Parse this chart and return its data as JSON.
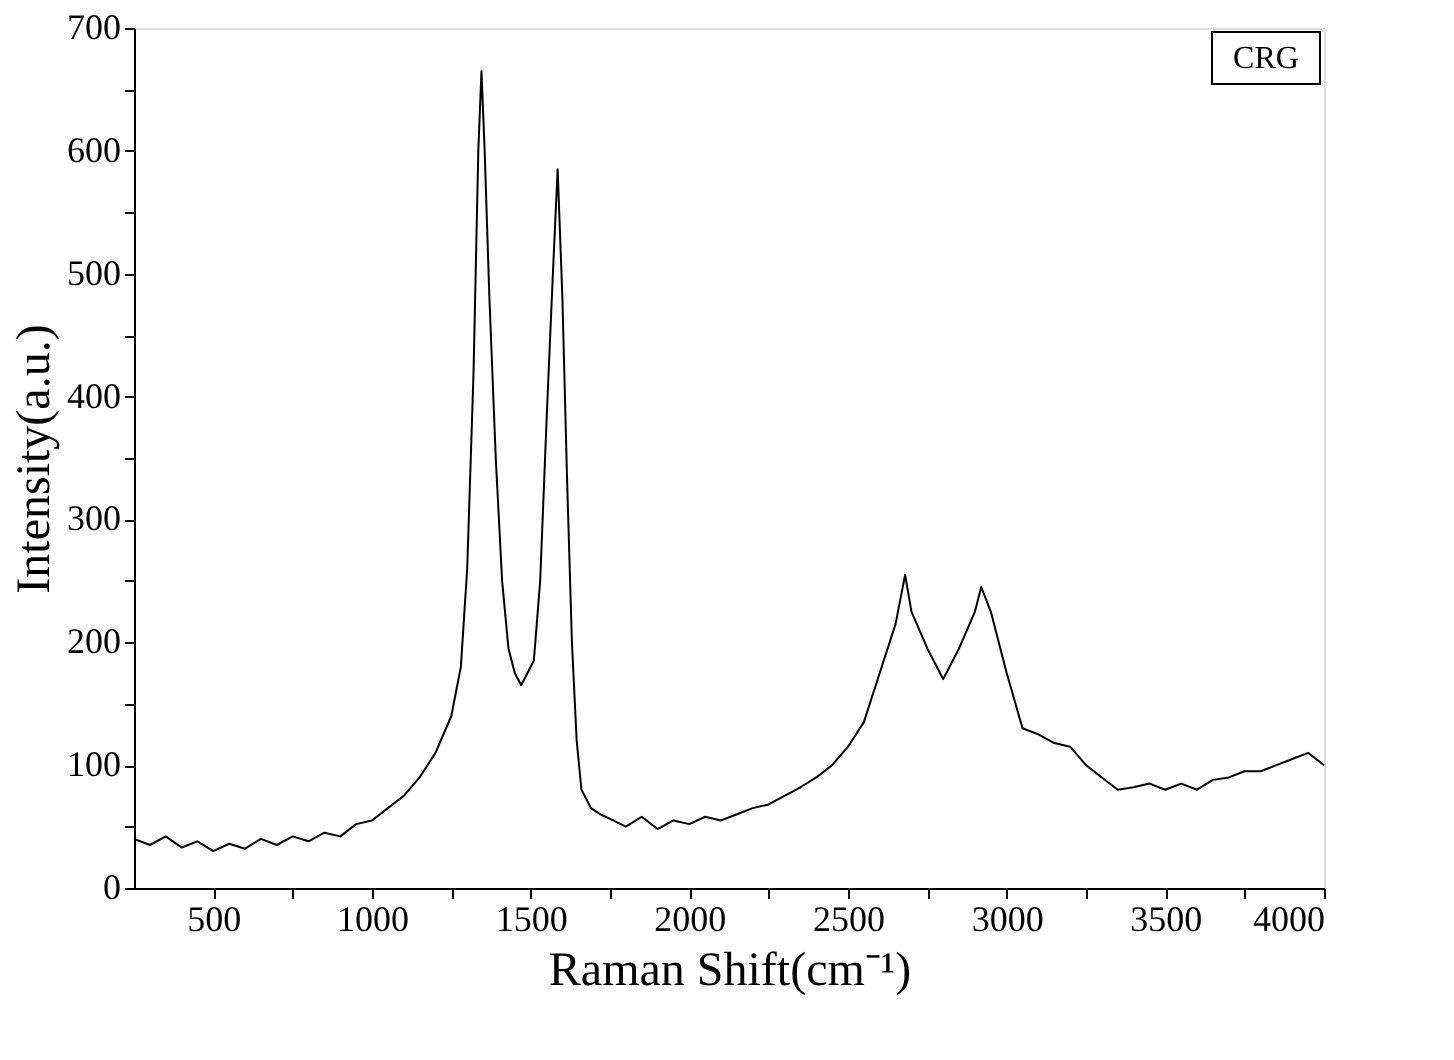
{
  "chart_data": {
    "type": "line",
    "xlabel": "Raman Shift(cm⁻¹)",
    "ylabel": "Intensity(a.u.)",
    "annotations": [
      "CRG"
    ],
    "xlim": [
      250,
      4000
    ],
    "ylim": [
      0,
      700
    ],
    "xticks": [
      500,
      {
        "value": 750,
        "label": null
      },
      1000,
      {
        "value": 1250,
        "label": null
      },
      1500,
      {
        "value": 1750,
        "label": null
      },
      2000,
      {
        "value": 2250,
        "label": null
      },
      2500,
      {
        "value": 2750,
        "label": null
      },
      3000,
      {
        "value": 3250,
        "label": null
      },
      3500,
      {
        "value": 3750,
        "label": null
      },
      4000
    ],
    "yticks": [
      0,
      {
        "value": 50,
        "label": null
      },
      100,
      {
        "value": 150,
        "label": null
      },
      200,
      {
        "value": 250,
        "label": null
      },
      300,
      {
        "value": 350,
        "label": null
      },
      400,
      {
        "value": 450,
        "label": null
      },
      500,
      {
        "value": 550,
        "label": null
      },
      600,
      {
        "value": 650,
        "label": null
      },
      700
    ],
    "grid": false,
    "marker": "none",
    "line_style": "solid",
    "series": [
      {
        "color": "#000000",
        "x": [
          250,
          300,
          350,
          400,
          450,
          500,
          550,
          600,
          650,
          700,
          750,
          800,
          850,
          900,
          950,
          1000,
          1050,
          1100,
          1150,
          1200,
          1250,
          1280,
          1300,
          1320,
          1335,
          1345,
          1355,
          1370,
          1390,
          1410,
          1430,
          1450,
          1470,
          1490,
          1510,
          1530,
          1550,
          1570,
          1585,
          1600,
          1615,
          1630,
          1645,
          1660,
          1690,
          1720,
          1760,
          1800,
          1850,
          1900,
          1950,
          2000,
          2050,
          2100,
          2150,
          2200,
          2250,
          2300,
          2350,
          2400,
          2450,
          2500,
          2550,
          2600,
          2650,
          2680,
          2700,
          2750,
          2800,
          2850,
          2900,
          2920,
          2950,
          3000,
          3050,
          3100,
          3150,
          3200,
          3250,
          3300,
          3350,
          3400,
          3450,
          3500,
          3550,
          3600,
          3650,
          3700,
          3750,
          3800,
          3850,
          3900,
          3950,
          4000
        ],
        "values": [
          40,
          35,
          42,
          33,
          38,
          30,
          36,
          32,
          40,
          35,
          42,
          38,
          45,
          42,
          52,
          55,
          65,
          75,
          90,
          110,
          140,
          180,
          260,
          420,
          600,
          665,
          600,
          480,
          350,
          250,
          195,
          175,
          165,
          175,
          185,
          250,
          380,
          500,
          585,
          480,
          330,
          200,
          120,
          80,
          65,
          60,
          55,
          50,
          58,
          48,
          55,
          52,
          58,
          55,
          60,
          65,
          68,
          75,
          82,
          90,
          100,
          115,
          135,
          175,
          215,
          255,
          225,
          195,
          170,
          195,
          225,
          245,
          225,
          175,
          130,
          125,
          118,
          115,
          100,
          90,
          80,
          82,
          85,
          80,
          85,
          80,
          88,
          90,
          95,
          95,
          100,
          105,
          110,
          100
        ]
      }
    ]
  }
}
